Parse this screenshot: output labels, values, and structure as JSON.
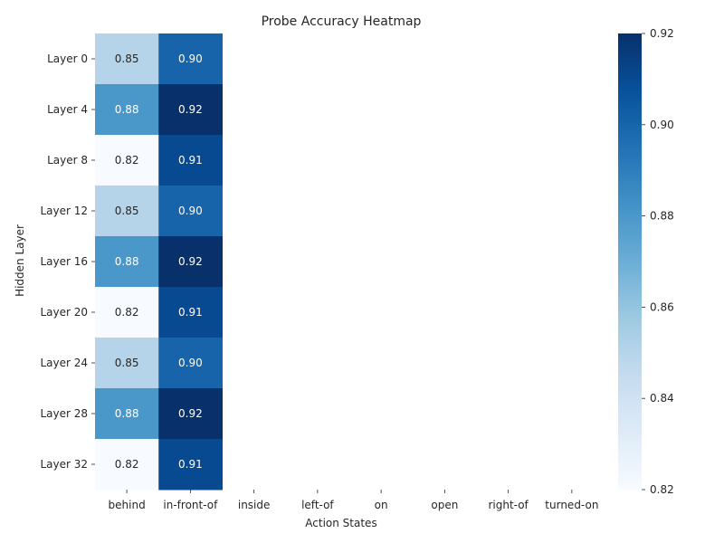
{
  "chart_data": {
    "type": "heatmap",
    "title": "Probe Accuracy Heatmap",
    "xlabel": "Action States",
    "ylabel": "Hidden Layer",
    "x_categories": [
      "behind",
      "in-front-of",
      "inside",
      "left-of",
      "on",
      "open",
      "right-of",
      "turned-on"
    ],
    "y_categories": [
      "Layer 0",
      "Layer 4",
      "Layer 8",
      "Layer 12",
      "Layer 16",
      "Layer 20",
      "Layer 24",
      "Layer 28",
      "Layer 32"
    ],
    "values": [
      [
        0.85,
        0.9,
        null,
        null,
        null,
        null,
        null,
        null
      ],
      [
        0.88,
        0.92,
        null,
        null,
        null,
        null,
        null,
        null
      ],
      [
        0.82,
        0.91,
        null,
        null,
        null,
        null,
        null,
        null
      ],
      [
        0.85,
        0.9,
        null,
        null,
        null,
        null,
        null,
        null
      ],
      [
        0.88,
        0.92,
        null,
        null,
        null,
        null,
        null,
        null
      ],
      [
        0.82,
        0.91,
        null,
        null,
        null,
        null,
        null,
        null
      ],
      [
        0.85,
        0.9,
        null,
        null,
        null,
        null,
        null,
        null
      ],
      [
        0.88,
        0.92,
        null,
        null,
        null,
        null,
        null,
        null
      ],
      [
        0.82,
        0.91,
        null,
        null,
        null,
        null,
        null,
        null
      ]
    ],
    "colorbar": {
      "range": [
        0.82,
        0.92
      ],
      "ticks": [
        "0.82",
        "0.84",
        "0.86",
        "0.88",
        "0.90",
        "0.92"
      ],
      "colormap": "Blues"
    },
    "annotation_format": "0.00",
    "grid": false,
    "legend": "colorbar-right"
  }
}
